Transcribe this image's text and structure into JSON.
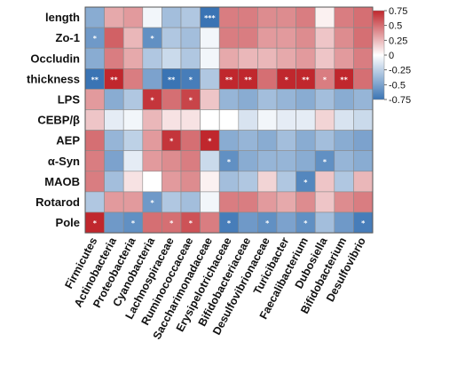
{
  "chart_data": {
    "type": "heatmap",
    "rows": [
      "length",
      "Zo-1",
      "Occludin",
      "thickness",
      "LPS",
      "CEBP/β",
      "AEP",
      "α-Syn",
      "MAOB",
      "Rotarod",
      "Pole"
    ],
    "columns": [
      "Firmicutes",
      "Actinobacteria",
      "Proteobacteria",
      "Cyanobacteria",
      "Lachnospiraceae",
      "Ruminococcaceae",
      "Saccharimonadaceae",
      "Erysipelotrichaceae",
      "Bifidobacteriaceae",
      "Desulfovibrionaceae",
      "Turicibacter",
      "Faecalibacterium",
      "Dubosiella",
      "Bifidobacterium",
      "Desulfovibrio"
    ],
    "values": [
      [
        -0.45,
        0.3,
        0.35,
        -0.05,
        -0.35,
        -0.3,
        -0.9,
        0.45,
        0.45,
        0.4,
        0.4,
        0.45,
        0.05,
        0.45,
        0.5
      ],
      [
        -0.55,
        0.55,
        0.25,
        -0.6,
        -0.3,
        -0.35,
        -0.05,
        0.45,
        0.45,
        0.35,
        0.35,
        0.4,
        0.2,
        0.4,
        0.5
      ],
      [
        -0.45,
        0.45,
        0.3,
        -0.3,
        -0.2,
        -0.3,
        -0.05,
        0.3,
        0.25,
        0.25,
        0.3,
        0.35,
        0.2,
        0.35,
        0.45
      ],
      [
        -0.8,
        0.8,
        0.45,
        -0.5,
        -0.75,
        -0.7,
        -0.3,
        0.8,
        0.8,
        0.5,
        0.75,
        0.75,
        0.45,
        0.8,
        0.5
      ],
      [
        0.35,
        -0.45,
        -0.3,
        0.7,
        0.5,
        0.65,
        0.2,
        -0.4,
        -0.45,
        -0.35,
        -0.4,
        -0.45,
        -0.35,
        -0.45,
        -0.4
      ],
      [
        0.2,
        -0.1,
        -0.05,
        0.25,
        0.1,
        0.1,
        0.0,
        0.0,
        -0.15,
        -0.05,
        -0.1,
        -0.1,
        0.15,
        -0.15,
        -0.2
      ],
      [
        0.5,
        -0.4,
        -0.25,
        0.35,
        0.7,
        0.5,
        0.75,
        -0.45,
        -0.4,
        -0.45,
        -0.35,
        -0.45,
        -0.35,
        -0.45,
        -0.5
      ],
      [
        0.45,
        -0.5,
        -0.1,
        0.35,
        0.4,
        0.45,
        -0.2,
        -0.6,
        -0.45,
        -0.4,
        -0.4,
        -0.45,
        -0.6,
        -0.4,
        -0.45
      ],
      [
        0.45,
        -0.35,
        0.1,
        0.0,
        0.35,
        0.4,
        0.05,
        -0.35,
        -0.3,
        0.15,
        -0.3,
        -0.65,
        0.2,
        -0.3,
        0.25
      ],
      [
        -0.3,
        0.35,
        0.35,
        -0.55,
        -0.3,
        -0.35,
        -0.05,
        0.45,
        0.45,
        0.35,
        0.3,
        0.4,
        0.2,
        0.4,
        0.45
      ],
      [
        0.75,
        -0.55,
        -0.6,
        0.5,
        0.5,
        0.6,
        0.45,
        -0.7,
        -0.55,
        -0.6,
        -0.5,
        -0.6,
        -0.35,
        -0.55,
        -0.7
      ]
    ],
    "significance": [
      [
        "",
        "",
        "",
        "",
        "",
        "",
        "***",
        "",
        "",
        "",
        "",
        "",
        "",
        "",
        ""
      ],
      [
        "*",
        "",
        "",
        "*",
        "",
        "",
        "",
        "",
        "",
        "",
        "",
        "",
        "",
        "",
        ""
      ],
      [
        "",
        "",
        "",
        "",
        "",
        "",
        "",
        "",
        "",
        "",
        "",
        "",
        "",
        "",
        ""
      ],
      [
        "**",
        "**",
        "",
        "",
        "**",
        "*",
        "",
        "**",
        "**",
        "",
        "*",
        "**",
        "*",
        "**",
        ""
      ],
      [
        "",
        "",
        "",
        "*",
        "",
        "*",
        "",
        "",
        "",
        "",
        "",
        "",
        "",
        "",
        ""
      ],
      [
        "",
        "",
        "",
        "",
        "",
        "",
        "",
        "",
        "",
        "",
        "",
        "",
        "",
        "",
        ""
      ],
      [
        "",
        "",
        "",
        "",
        "*",
        "",
        "*",
        "",
        "",
        "",
        "",
        "",
        "",
        "",
        ""
      ],
      [
        "",
        "",
        "",
        "",
        "",
        "",
        "",
        "*",
        "",
        "",
        "",
        "",
        "*",
        "",
        ""
      ],
      [
        "",
        "",
        "",
        "",
        "",
        "",
        "",
        "",
        "",
        "",
        "",
        "*",
        "",
        "",
        ""
      ],
      [
        "",
        "",
        "",
        "*",
        "",
        "",
        "",
        "",
        "",
        "",
        "",
        "",
        "",
        "",
        ""
      ],
      [
        "*",
        "",
        "*",
        "",
        "*",
        "*",
        "",
        "*",
        "",
        "*",
        "",
        "*",
        "",
        "",
        "*"
      ]
    ],
    "color_scale": {
      "min": -0.75,
      "max": 0.75,
      "low_color": "#3a74b4",
      "mid_color": "#ffffff",
      "high_color": "#c0272d",
      "ticks": [
        "0.75",
        "0.5",
        "0.25",
        "0",
        "-0.25",
        "-0.5",
        "-0.75"
      ]
    },
    "legend_placement": "right"
  }
}
